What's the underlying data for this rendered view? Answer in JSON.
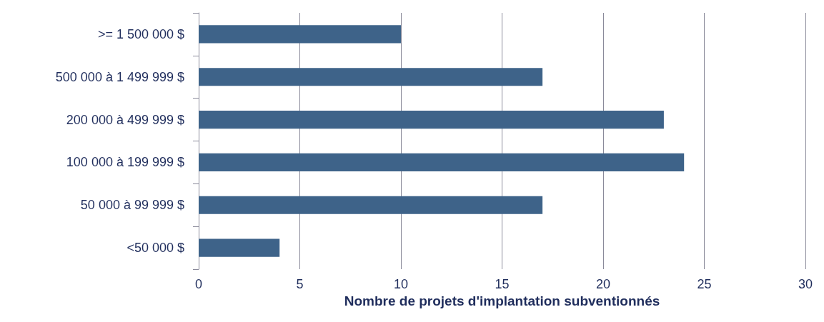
{
  "chart_data": {
    "type": "bar",
    "orientation": "horizontal",
    "xlabel": "Nombre de projets d'implantation subventionnés",
    "categories": [
      ">= 1 500 000 $",
      "500 000 à 1 499 999 $",
      "200 000 à 499 999 $",
      "100 000 à 199 999 $",
      "50 000 à 99 999 $",
      "<50 000 $"
    ],
    "values": [
      10,
      17,
      23,
      24,
      17,
      4
    ],
    "color": "#3e6389",
    "xlim": [
      0,
      30
    ],
    "xticks": [
      0,
      5,
      10,
      15,
      20,
      25,
      30
    ],
    "grid": "x"
  }
}
